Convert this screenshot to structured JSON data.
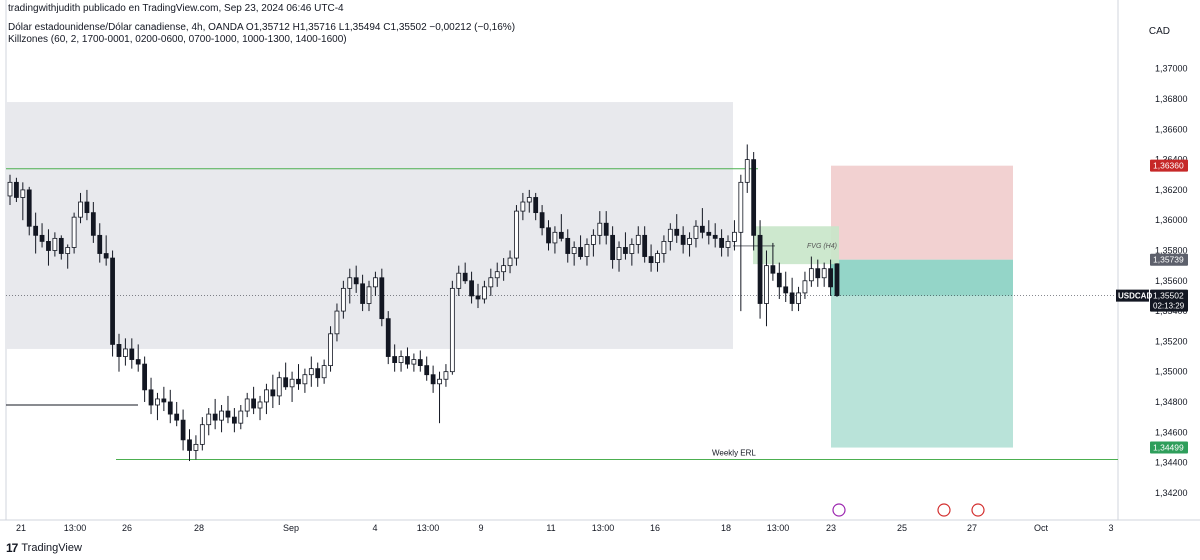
{
  "header": {
    "publisher": "tradingwithjudith publicado en TradingView.com, Sep 23, 2024 06:46 UTC-4",
    "symbol_line": "Dólar estadounidense/Dólar canadiense, 4h, OANDA  O1,35712  H1,35716  L1,35494  C1,35502  −0,00212 (−0,16%)",
    "indicator_line": "Killzones (60, 2, 1700-0001, 0200-0600, 0700-1000, 1000-1300, 1400-1600)"
  },
  "currency": "CAD",
  "footer": {
    "brand": "TradingView",
    "logo_mark": "17"
  },
  "colors": {
    "up_candle": "#ffffff",
    "down_candle": "#131722",
    "range_box": "#e8e9ed",
    "level_line": "#4caf50",
    "fvg_box": "#c8e6c9",
    "stop_zone": "#f2d1d1",
    "target_zone": "#b9e3d9",
    "overlap_zone": "#84cfc0",
    "stop_badge": "#c62828",
    "target_badge": "#2e9e5b",
    "entry_badge": "#5d606b",
    "price_badge": "#131722"
  },
  "chart_data": {
    "type": "candlestick",
    "symbol": "USDCAD",
    "timeframe": "4h",
    "ylim": [
      1.341,
      1.3715
    ],
    "y_ticks": [
      "1,37000",
      "1,36800",
      "1,36600",
      "1,36400",
      "1,36200",
      "1,36000",
      "1,35800",
      "1,35600",
      "1,35400",
      "1,35200",
      "1,35000",
      "1,34800",
      "1,34600",
      "1,34400",
      "1,34200"
    ],
    "x_ticks": [
      "21",
      "13:00",
      "26",
      "28",
      "Sep",
      "4",
      "13:00",
      "9",
      "11",
      "13:00",
      "16",
      "18",
      "13:00",
      "23",
      "25",
      "27",
      "Oct",
      "3"
    ],
    "price_labels": {
      "stop": "1,36360",
      "entry": "1,35739",
      "current_symbol": "USDCAD",
      "current": "1,35502",
      "countdown": "02:13:29",
      "target": "1,34499"
    },
    "annotations": {
      "fvg": "FVG (H4)",
      "weekly_erl": "Weekly ERL"
    },
    "levels": {
      "range_high": 1.3678,
      "range_low": 1.3515,
      "range_mid": 1.3555,
      "upper_line": 1.3634,
      "lower_left_line": 1.3478,
      "weekly_erl": 1.3442,
      "fvg_top": 1.3596,
      "fvg_bottom": 1.3571,
      "stop": 1.3636,
      "entry": 1.35739,
      "target": 1.34499,
      "current": 1.35502
    },
    "candles": [
      [
        1.3616,
        1.363,
        1.361,
        1.3625
      ],
      [
        1.3625,
        1.3628,
        1.3612,
        1.3615
      ],
      [
        1.3615,
        1.3625,
        1.36,
        1.362
      ],
      [
        1.362,
        1.3622,
        1.359,
        1.3596
      ],
      [
        1.3596,
        1.3605,
        1.3578,
        1.359
      ],
      [
        1.359,
        1.3598,
        1.3582,
        1.3586
      ],
      [
        1.3586,
        1.3594,
        1.357,
        1.358
      ],
      [
        1.358,
        1.3592,
        1.3576,
        1.3588
      ],
      [
        1.3588,
        1.359,
        1.3574,
        1.3578
      ],
      [
        1.3578,
        1.3584,
        1.3568,
        1.3582
      ],
      [
        1.3582,
        1.3605,
        1.3578,
        1.3602
      ],
      [
        1.3602,
        1.3618,
        1.3598,
        1.3612
      ],
      [
        1.3612,
        1.362,
        1.36,
        1.3605
      ],
      [
        1.3605,
        1.3612,
        1.3585,
        1.359
      ],
      [
        1.359,
        1.3598,
        1.3572,
        1.3578
      ],
      [
        1.3578,
        1.359,
        1.357,
        1.3575
      ],
      [
        1.3575,
        1.358,
        1.351,
        1.3518
      ],
      [
        1.3518,
        1.3525,
        1.35,
        1.351
      ],
      [
        1.351,
        1.3522,
        1.3504,
        1.3515
      ],
      [
        1.3515,
        1.3522,
        1.3502,
        1.3508
      ],
      [
        1.3508,
        1.3518,
        1.35,
        1.3505
      ],
      [
        1.3505,
        1.351,
        1.348,
        1.3488
      ],
      [
        1.3488,
        1.3496,
        1.3472,
        1.3478
      ],
      [
        1.3478,
        1.3486,
        1.3468,
        1.3482
      ],
      [
        1.3482,
        1.349,
        1.3474,
        1.348
      ],
      [
        1.348,
        1.3488,
        1.3466,
        1.3472
      ],
      [
        1.3472,
        1.348,
        1.3464,
        1.3468
      ],
      [
        1.3468,
        1.3475,
        1.3448,
        1.3455
      ],
      [
        1.3455,
        1.3462,
        1.3441,
        1.3448
      ],
      [
        1.3448,
        1.3458,
        1.3442,
        1.3452
      ],
      [
        1.3452,
        1.347,
        1.3448,
        1.3465
      ],
      [
        1.3465,
        1.3476,
        1.3458,
        1.3472
      ],
      [
        1.3472,
        1.3482,
        1.3462,
        1.3468
      ],
      [
        1.3468,
        1.3478,
        1.346,
        1.3474
      ],
      [
        1.3474,
        1.3484,
        1.3466,
        1.347
      ],
      [
        1.347,
        1.3476,
        1.346,
        1.3466
      ],
      [
        1.3466,
        1.3478,
        1.3462,
        1.3474
      ],
      [
        1.3474,
        1.3486,
        1.347,
        1.3482
      ],
      [
        1.3482,
        1.349,
        1.3472,
        1.3476
      ],
      [
        1.3476,
        1.3484,
        1.3468,
        1.348
      ],
      [
        1.348,
        1.3492,
        1.3472,
        1.3488
      ],
      [
        1.3488,
        1.3498,
        1.3476,
        1.3484
      ],
      [
        1.3484,
        1.35,
        1.3478,
        1.3496
      ],
      [
        1.3496,
        1.3506,
        1.3488,
        1.349
      ],
      [
        1.349,
        1.35,
        1.348,
        1.3495
      ],
      [
        1.3495,
        1.3505,
        1.3488,
        1.3492
      ],
      [
        1.3492,
        1.3502,
        1.3486,
        1.3498
      ],
      [
        1.3498,
        1.351,
        1.349,
        1.3502
      ],
      [
        1.3502,
        1.3506,
        1.349,
        1.3496
      ],
      [
        1.3496,
        1.3508,
        1.3492,
        1.3504
      ],
      [
        1.3504,
        1.353,
        1.35,
        1.3525
      ],
      [
        1.3525,
        1.3545,
        1.352,
        1.354
      ],
      [
        1.354,
        1.356,
        1.3535,
        1.3555
      ],
      [
        1.3555,
        1.3568,
        1.3545,
        1.3562
      ],
      [
        1.3562,
        1.357,
        1.3552,
        1.3558
      ],
      [
        1.3558,
        1.3564,
        1.354,
        1.3545
      ],
      [
        1.3545,
        1.356,
        1.354,
        1.3556
      ],
      [
        1.3556,
        1.3566,
        1.355,
        1.3562
      ],
      [
        1.3562,
        1.3568,
        1.353,
        1.3535
      ],
      [
        1.3535,
        1.354,
        1.3505,
        1.351
      ],
      [
        1.351,
        1.3518,
        1.35,
        1.3506
      ],
      [
        1.3506,
        1.3514,
        1.35,
        1.351
      ],
      [
        1.351,
        1.3516,
        1.3502,
        1.3505
      ],
      [
        1.3505,
        1.3512,
        1.35,
        1.3508
      ],
      [
        1.3508,
        1.3514,
        1.35,
        1.3504
      ],
      [
        1.3504,
        1.351,
        1.3494,
        1.3498
      ],
      [
        1.3498,
        1.3504,
        1.3486,
        1.3492
      ],
      [
        1.3492,
        1.35,
        1.3466,
        1.3495
      ],
      [
        1.3495,
        1.3505,
        1.349,
        1.35
      ],
      [
        1.35,
        1.356,
        1.3498,
        1.3555
      ],
      [
        1.3555,
        1.357,
        1.355,
        1.3565
      ],
      [
        1.3565,
        1.3572,
        1.3558,
        1.356
      ],
      [
        1.356,
        1.3566,
        1.3545,
        1.355
      ],
      [
        1.355,
        1.3558,
        1.3542,
        1.3548
      ],
      [
        1.3548,
        1.356,
        1.3545,
        1.3556
      ],
      [
        1.3556,
        1.3568,
        1.355,
        1.3562
      ],
      [
        1.3562,
        1.3572,
        1.3556,
        1.3566
      ],
      [
        1.3566,
        1.3575,
        1.356,
        1.357
      ],
      [
        1.357,
        1.358,
        1.3565,
        1.3575
      ],
      [
        1.3575,
        1.361,
        1.357,
        1.3606
      ],
      [
        1.3606,
        1.3618,
        1.36,
        1.3612
      ],
      [
        1.3612,
        1.362,
        1.3605,
        1.3615
      ],
      [
        1.3615,
        1.3618,
        1.36,
        1.3605
      ],
      [
        1.3605,
        1.361,
        1.359,
        1.3595
      ],
      [
        1.3595,
        1.36,
        1.358,
        1.3585
      ],
      [
        1.3585,
        1.3596,
        1.3578,
        1.3592
      ],
      [
        1.3592,
        1.3604,
        1.3586,
        1.3588
      ],
      [
        1.3588,
        1.3594,
        1.3572,
        1.3578
      ],
      [
        1.3578,
        1.3586,
        1.357,
        1.3582
      ],
      [
        1.3582,
        1.359,
        1.3574,
        1.3576
      ],
      [
        1.3576,
        1.3588,
        1.357,
        1.3584
      ],
      [
        1.3584,
        1.3594,
        1.3576,
        1.359
      ],
      [
        1.359,
        1.3606,
        1.3584,
        1.3598
      ],
      [
        1.3598,
        1.3606,
        1.3584,
        1.359
      ],
      [
        1.359,
        1.3596,
        1.3568,
        1.3574
      ],
      [
        1.3574,
        1.3586,
        1.3566,
        1.3582
      ],
      [
        1.3582,
        1.3592,
        1.3574,
        1.3578
      ],
      [
        1.3578,
        1.3588,
        1.357,
        1.3584
      ],
      [
        1.3584,
        1.3596,
        1.3578,
        1.359
      ],
      [
        1.359,
        1.3596,
        1.3572,
        1.3576
      ],
      [
        1.3576,
        1.3584,
        1.3566,
        1.3572
      ],
      [
        1.3572,
        1.358,
        1.3566,
        1.3578
      ],
      [
        1.3578,
        1.359,
        1.3572,
        1.3586
      ],
      [
        1.3586,
        1.3598,
        1.358,
        1.3594
      ],
      [
        1.3594,
        1.3604,
        1.3585,
        1.359
      ],
      [
        1.359,
        1.3596,
        1.3578,
        1.3584
      ],
      [
        1.3584,
        1.3592,
        1.3576,
        1.3588
      ],
      [
        1.3588,
        1.36,
        1.3582,
        1.3596
      ],
      [
        1.3596,
        1.3608,
        1.3588,
        1.3592
      ],
      [
        1.3592,
        1.36,
        1.3584,
        1.359
      ],
      [
        1.359,
        1.3598,
        1.3582,
        1.3588
      ],
      [
        1.3588,
        1.3594,
        1.3576,
        1.3582
      ],
      [
        1.3582,
        1.359,
        1.3576,
        1.3586
      ],
      [
        1.3586,
        1.36,
        1.358,
        1.3592
      ],
      [
        1.3592,
        1.363,
        1.354,
        1.3625
      ],
      [
        1.3625,
        1.365,
        1.3618,
        1.364
      ],
      [
        1.364,
        1.3645,
        1.358,
        1.359
      ],
      [
        1.359,
        1.36,
        1.3535,
        1.3545
      ],
      [
        1.3545,
        1.358,
        1.353,
        1.357
      ],
      [
        1.357,
        1.3585,
        1.356,
        1.3565
      ],
      [
        1.3565,
        1.3572,
        1.3548,
        1.3556
      ],
      [
        1.3556,
        1.3566,
        1.3546,
        1.3552
      ],
      [
        1.3552,
        1.3562,
        1.354,
        1.3545
      ],
      [
        1.3545,
        1.3556,
        1.354,
        1.3552
      ],
      [
        1.3552,
        1.3566,
        1.3548,
        1.356
      ],
      [
        1.356,
        1.3576,
        1.3556,
        1.3568
      ],
      [
        1.3568,
        1.3574,
        1.3556,
        1.3562
      ],
      [
        1.3562,
        1.3572,
        1.3556,
        1.3568
      ],
      [
        1.3568,
        1.3574,
        1.355,
        1.3556
      ],
      [
        1.35712,
        1.35716,
        1.35494,
        1.35502
      ]
    ]
  }
}
